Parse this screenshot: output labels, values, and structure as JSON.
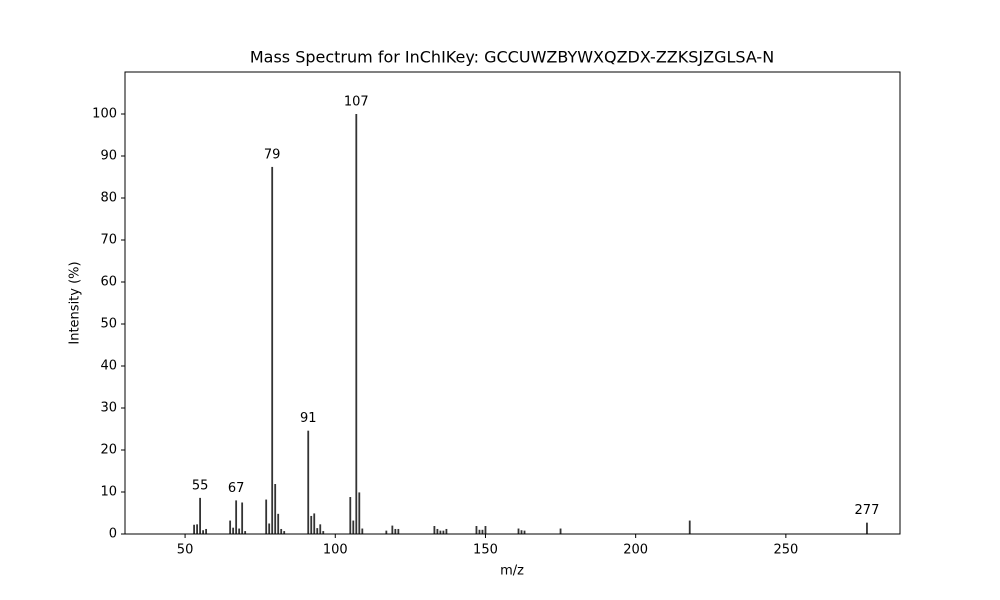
{
  "chart_data": {
    "type": "stem",
    "title": "Mass Spectrum for InChIKey: GCCUWZBYWXQZDX-ZZKSJZGLSA-N",
    "x_label": "m/z",
    "y_label": "Intensity (%)",
    "x": [
      53,
      54,
      55,
      56,
      57,
      65,
      66,
      67,
      68,
      69,
      70,
      77,
      78,
      79,
      80,
      81,
      82,
      83,
      91,
      92,
      93,
      94,
      95,
      96,
      105,
      106,
      107,
      108,
      109,
      117,
      119,
      120,
      121,
      133,
      134,
      135,
      136,
      137,
      147,
      148,
      149,
      150,
      161,
      162,
      163,
      175,
      218,
      277
    ],
    "values": [
      2.2,
      2.3,
      8.6,
      0.9,
      1.2,
      3.2,
      1.5,
      8.0,
      1.3,
      7.5,
      0.7,
      8.2,
      2.5,
      87.4,
      11.9,
      4.8,
      1.2,
      0.7,
      24.6,
      4.3,
      4.9,
      1.4,
      2.3,
      0.7,
      8.8,
      3.2,
      100,
      9.9,
      1.3,
      0.8,
      2.0,
      1.2,
      1.2,
      1.9,
      1.2,
      0.8,
      0.8,
      1.2,
      1.9,
      1.0,
      1.0,
      1.9,
      1.3,
      0.9,
      0.8,
      1.3,
      3.2,
      2.7
    ],
    "labeled_peaks": [
      55,
      67,
      79,
      91,
      107,
      277
    ],
    "color": "#333333",
    "xlim": [
      30,
      288
    ],
    "ylim": [
      0,
      110
    ],
    "xticks": [
      50,
      100,
      150,
      200,
      250
    ],
    "yticks": [
      0,
      10,
      20,
      30,
      40,
      50,
      60,
      70,
      80,
      90,
      100
    ]
  }
}
